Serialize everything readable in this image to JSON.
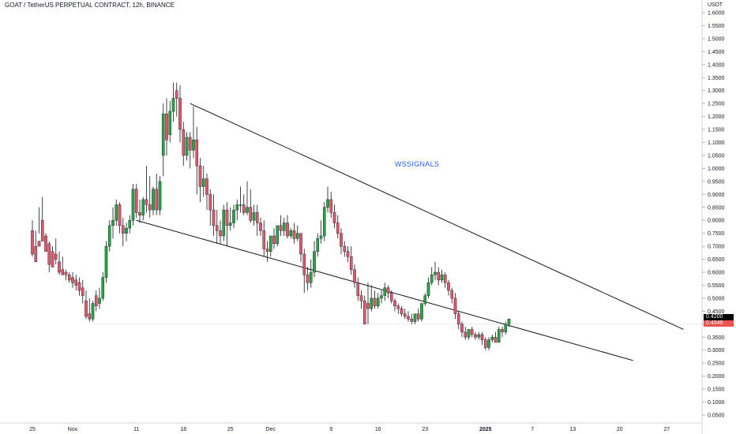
{
  "header": {
    "title": "GOAT / TetherUS PERPETUAL CONTRACT, 12h, BINANCE",
    "currency": "USDT"
  },
  "watermark": "WSSIGNALS",
  "price_labels": {
    "last": "0.4200",
    "countdown": "0.4049"
  },
  "colors": {
    "up": "#26a641",
    "down": "#e0566b",
    "wick": "#131722",
    "last_price": "#000000",
    "countdown": "#ef5350",
    "watermark": "#2962ff"
  },
  "chart_data": {
    "type": "candlestick",
    "interval": "12h",
    "y_axis": {
      "min": 0.05,
      "max": 1.6,
      "ticks": [
        "0.0500",
        "0.1000",
        "0.1500",
        "0.2000",
        "0.2500",
        "0.3000",
        "0.3500",
        "0.4000",
        "0.4500",
        "0.5000",
        "0.5500",
        "0.6000",
        "0.6500",
        "0.7000",
        "0.7500",
        "0.8000",
        "0.8500",
        "0.9000",
        "0.9500",
        "1.0000",
        "1.0500",
        "1.1000",
        "1.1500",
        "1.2000",
        "1.2500",
        "1.3000",
        "1.3500",
        "1.4000",
        "1.4500",
        "1.5000",
        "1.5500",
        "1.6000"
      ]
    },
    "x_axis": {
      "ticks": [
        {
          "label": "25",
          "i": 0
        },
        {
          "label": "Nov",
          "i": 12
        },
        {
          "label": "11",
          "i": 31
        },
        {
          "label": "18",
          "i": 45
        },
        {
          "label": "25",
          "i": 59
        },
        {
          "label": "Dec",
          "i": 71
        },
        {
          "label": "9",
          "i": 89
        },
        {
          "label": "16",
          "i": 103
        },
        {
          "label": "23",
          "i": 117
        },
        {
          "label": "2025",
          "i": 135
        },
        {
          "label": "7",
          "i": 149
        },
        {
          "label": "13",
          "i": 161
        },
        {
          "label": "20",
          "i": 175
        },
        {
          "label": "27",
          "i": 189
        }
      ]
    },
    "candles": [
      [
        0.76,
        0.8,
        0.67,
        0.66
      ],
      [
        0.7,
        0.76,
        0.64,
        0.65
      ],
      [
        0.72,
        0.85,
        0.7,
        0.75
      ],
      [
        0.8,
        0.89,
        0.72,
        0.74
      ],
      [
        0.74,
        0.75,
        0.68,
        0.7
      ],
      [
        0.71,
        0.72,
        0.63,
        0.6
      ],
      [
        0.68,
        0.7,
        0.62,
        0.62
      ],
      [
        0.67,
        0.73,
        0.65,
        0.63
      ],
      [
        0.64,
        0.68,
        0.6,
        0.59
      ],
      [
        0.61,
        0.66,
        0.59,
        0.59
      ],
      [
        0.6,
        0.61,
        0.59,
        0.57
      ],
      [
        0.59,
        0.6,
        0.57,
        0.56
      ],
      [
        0.58,
        0.6,
        0.56,
        0.54
      ],
      [
        0.57,
        0.59,
        0.55,
        0.53
      ],
      [
        0.56,
        0.58,
        0.53,
        0.51
      ],
      [
        0.54,
        0.57,
        0.51,
        0.48
      ],
      [
        0.49,
        0.53,
        0.43,
        0.42
      ],
      [
        0.44,
        0.5,
        0.42,
        0.41
      ],
      [
        0.42,
        0.49,
        0.48,
        0.41
      ],
      [
        0.51,
        0.53,
        0.47,
        0.45
      ],
      [
        0.48,
        0.54,
        0.5,
        0.46
      ],
      [
        0.5,
        0.6,
        0.58,
        0.49
      ],
      [
        0.58,
        0.72,
        0.7,
        0.56
      ],
      [
        0.7,
        0.8,
        0.78,
        0.68
      ],
      [
        0.78,
        0.85,
        0.8,
        0.73
      ],
      [
        0.8,
        0.88,
        0.86,
        0.78
      ],
      [
        0.86,
        0.87,
        0.78,
        0.75
      ],
      [
        0.78,
        0.81,
        0.75,
        0.7
      ],
      [
        0.75,
        0.79,
        0.77,
        0.72
      ],
      [
        0.77,
        0.82,
        0.8,
        0.75
      ],
      [
        0.8,
        0.94,
        0.92,
        0.78
      ],
      [
        0.92,
        0.94,
        0.83,
        0.81
      ],
      [
        0.83,
        0.88,
        0.82,
        0.79
      ],
      [
        0.82,
        0.89,
        0.88,
        0.8
      ],
      [
        0.88,
        1.01,
        0.86,
        0.83
      ],
      [
        0.86,
        0.97,
        0.84,
        0.81
      ],
      [
        0.84,
        0.93,
        0.92,
        0.82
      ],
      [
        0.92,
        0.98,
        0.84,
        0.82
      ],
      [
        0.84,
        0.97,
        0.95,
        0.82
      ],
      [
        1.05,
        1.25,
        1.21,
        0.97
      ],
      [
        1.21,
        1.27,
        1.11,
        1.05
      ],
      [
        1.13,
        1.26,
        1.22,
        1.1
      ],
      [
        1.22,
        1.33,
        1.27,
        1.18
      ],
      [
        1.3,
        1.33,
        1.27,
        1.2
      ],
      [
        1.27,
        1.32,
        1.15,
        1.1
      ],
      [
        1.15,
        1.18,
        1.05,
        1.01
      ],
      [
        1.05,
        1.14,
        1.12,
        1.03
      ],
      [
        1.12,
        1.14,
        1.07,
        1.0
      ],
      [
        1.07,
        1.24,
        1.11,
        1.04
      ],
      [
        1.11,
        1.16,
        1.01,
        0.9
      ],
      [
        1.01,
        1.04,
        0.93,
        0.87
      ],
      [
        0.93,
        1.01,
        0.96,
        0.89
      ],
      [
        0.96,
        0.98,
        0.9,
        0.84
      ],
      [
        0.9,
        0.92,
        0.84,
        0.78
      ],
      [
        0.84,
        0.9,
        0.78,
        0.74
      ],
      [
        0.78,
        0.84,
        0.76,
        0.71
      ],
      [
        0.76,
        0.8,
        0.74,
        0.71
      ],
      [
        0.74,
        0.86,
        0.84,
        0.72
      ],
      [
        0.84,
        0.87,
        0.78,
        0.7
      ],
      [
        0.78,
        0.85,
        0.79,
        0.76
      ],
      [
        0.79,
        0.86,
        0.84,
        0.77
      ],
      [
        0.84,
        0.88,
        0.86,
        0.8
      ],
      [
        0.86,
        0.93,
        0.86,
        0.83
      ],
      [
        0.86,
        0.9,
        0.83,
        0.82
      ],
      [
        0.83,
        0.95,
        0.85,
        0.82
      ],
      [
        0.85,
        0.92,
        0.8,
        0.79
      ],
      [
        0.8,
        0.86,
        0.83,
        0.78
      ],
      [
        0.83,
        0.86,
        0.79,
        0.74
      ],
      [
        0.79,
        0.81,
        0.76,
        0.74
      ],
      [
        0.76,
        0.8,
        0.69,
        0.66
      ],
      [
        0.69,
        0.72,
        0.68,
        0.64
      ],
      [
        0.68,
        0.7,
        0.74,
        0.66
      ],
      [
        0.74,
        0.77,
        0.71,
        0.69
      ],
      [
        0.71,
        0.75,
        0.78,
        0.7
      ],
      [
        0.78,
        0.82,
        0.76,
        0.74
      ],
      [
        0.76,
        0.81,
        0.79,
        0.74
      ],
      [
        0.79,
        0.82,
        0.74,
        0.73
      ],
      [
        0.74,
        0.77,
        0.76,
        0.73
      ],
      [
        0.76,
        0.79,
        0.73,
        0.71
      ],
      [
        0.73,
        0.78,
        0.75,
        0.72
      ],
      [
        0.75,
        0.72,
        0.67,
        0.64
      ],
      [
        0.67,
        0.69,
        0.59,
        0.52
      ],
      [
        0.59,
        0.62,
        0.56,
        0.53
      ],
      [
        0.56,
        0.65,
        0.6,
        0.54
      ],
      [
        0.6,
        0.72,
        0.68,
        0.58
      ],
      [
        0.68,
        0.75,
        0.73,
        0.66
      ],
      [
        0.73,
        0.8,
        0.74,
        0.71
      ],
      [
        0.74,
        0.87,
        0.85,
        0.72
      ],
      [
        0.85,
        0.93,
        0.88,
        0.83
      ],
      [
        0.88,
        0.91,
        0.83,
        0.81
      ],
      [
        0.83,
        0.86,
        0.79,
        0.77
      ],
      [
        0.79,
        0.82,
        0.75,
        0.73
      ],
      [
        0.75,
        0.77,
        0.7,
        0.67
      ],
      [
        0.7,
        0.72,
        0.68,
        0.66
      ],
      [
        0.68,
        0.7,
        0.66,
        0.64
      ],
      [
        0.66,
        0.7,
        0.61,
        0.59
      ],
      [
        0.61,
        0.63,
        0.56,
        0.54
      ],
      [
        0.56,
        0.58,
        0.51,
        0.49
      ],
      [
        0.51,
        0.53,
        0.49,
        0.46
      ],
      [
        0.49,
        0.51,
        0.4,
        0.4
      ],
      [
        0.48,
        0.56,
        0.46,
        0.4
      ],
      [
        0.46,
        0.55,
        0.5,
        0.45
      ],
      [
        0.5,
        0.53,
        0.47,
        0.46
      ],
      [
        0.47,
        0.52,
        0.5,
        0.46
      ],
      [
        0.5,
        0.53,
        0.51,
        0.48
      ],
      [
        0.51,
        0.56,
        0.54,
        0.49
      ],
      [
        0.54,
        0.55,
        0.52,
        0.5
      ],
      [
        0.52,
        0.53,
        0.49,
        0.48
      ],
      [
        0.49,
        0.5,
        0.47,
        0.45
      ],
      [
        0.47,
        0.48,
        0.46,
        0.44
      ],
      [
        0.46,
        0.47,
        0.44,
        0.43
      ],
      [
        0.44,
        0.46,
        0.43,
        0.42
      ],
      [
        0.43,
        0.45,
        0.42,
        0.41
      ],
      [
        0.42,
        0.44,
        0.41,
        0.4
      ],
      [
        0.41,
        0.43,
        0.44,
        0.4
      ],
      [
        0.44,
        0.46,
        0.42,
        0.41
      ],
      [
        0.42,
        0.45,
        0.48,
        0.41
      ],
      [
        0.48,
        0.52,
        0.51,
        0.47
      ],
      [
        0.51,
        0.58,
        0.56,
        0.5
      ],
      [
        0.56,
        0.62,
        0.59,
        0.55
      ],
      [
        0.59,
        0.64,
        0.6,
        0.57
      ],
      [
        0.6,
        0.62,
        0.57,
        0.55
      ],
      [
        0.57,
        0.61,
        0.59,
        0.56
      ],
      [
        0.59,
        0.6,
        0.56,
        0.54
      ],
      [
        0.56,
        0.57,
        0.53,
        0.51
      ],
      [
        0.53,
        0.54,
        0.5,
        0.48
      ],
      [
        0.5,
        0.52,
        0.44,
        0.42
      ],
      [
        0.44,
        0.45,
        0.4,
        0.38
      ],
      [
        0.4,
        0.41,
        0.37,
        0.35
      ],
      [
        0.37,
        0.39,
        0.35,
        0.34
      ],
      [
        0.35,
        0.37,
        0.38,
        0.34
      ],
      [
        0.38,
        0.39,
        0.36,
        0.35
      ],
      [
        0.36,
        0.37,
        0.35,
        0.34
      ],
      [
        0.35,
        0.37,
        0.36,
        0.34
      ],
      [
        0.36,
        0.37,
        0.34,
        0.32
      ],
      [
        0.34,
        0.35,
        0.31,
        0.3
      ],
      [
        0.31,
        0.35,
        0.34,
        0.3
      ],
      [
        0.34,
        0.36,
        0.35,
        0.33
      ],
      [
        0.35,
        0.37,
        0.33,
        0.33
      ],
      [
        0.33,
        0.39,
        0.38,
        0.33
      ],
      [
        0.38,
        0.39,
        0.37,
        0.35
      ],
      [
        0.37,
        0.41,
        0.4,
        0.36
      ],
      [
        0.4,
        0.42,
        0.42,
        0.39
      ]
    ],
    "trendlines": [
      {
        "from": [
          47,
          1.25
        ],
        "to": [
          194,
          0.38
        ]
      },
      {
        "from": [
          31,
          0.8
        ],
        "to": [
          179,
          0.26
        ]
      }
    ],
    "current_price": 0.42
  }
}
